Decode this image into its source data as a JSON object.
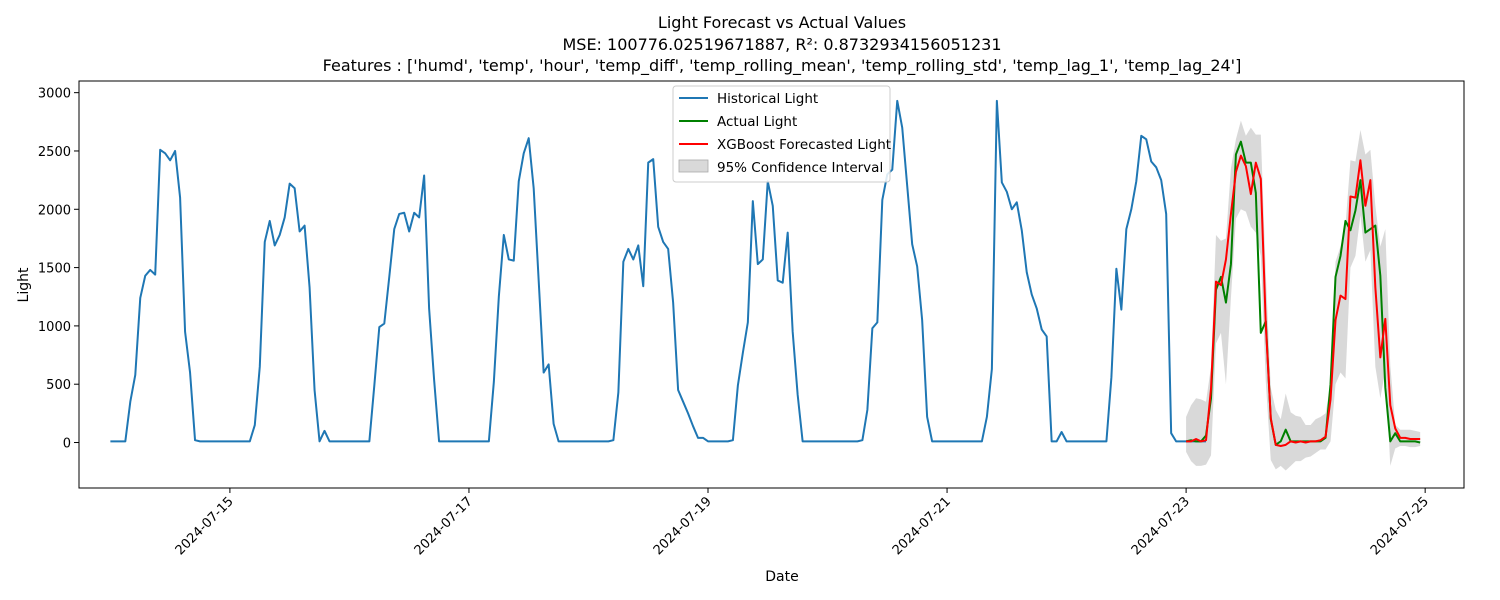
{
  "chart_data": {
    "type": "line",
    "title": "Light Forecast vs Actual Values",
    "subtitle": "MSE: 100776.02519671887, R²: 0.8732934156051231",
    "features_line": "Features : ['humd', 'temp', 'hour', 'temp_diff', 'temp_rolling_mean', 'temp_rolling_std', 'temp_lag_1', 'temp_lag_24']",
    "xlabel": "Date",
    "ylabel": "Light",
    "x_unit": "hours since 2024-07-14 00:00",
    "xlim": [
      -6.3,
      271.8
    ],
    "ylim": [
      -390,
      3100
    ],
    "x_ticks": [
      {
        "x": 24,
        "label": "2024-07-15"
      },
      {
        "x": 72,
        "label": "2024-07-17"
      },
      {
        "x": 120,
        "label": "2024-07-19"
      },
      {
        "x": 168,
        "label": "2024-07-21"
      },
      {
        "x": 216,
        "label": "2024-07-23"
      },
      {
        "x": 264,
        "label": "2024-07-25"
      }
    ],
    "y_ticks": [
      0,
      500,
      1000,
      1500,
      2000,
      2500,
      3000
    ],
    "legend_position": "upper-center",
    "series": [
      {
        "name": "Historical Light",
        "color": "#1f77b4",
        "x_start": 0,
        "values": [
          10,
          10,
          10,
          10,
          350,
          580,
          1240,
          1430,
          1480,
          1440,
          2510,
          2480,
          2420,
          2500,
          2100,
          950,
          600,
          20,
          10,
          10,
          10,
          10,
          10,
          10,
          10,
          10,
          10,
          10,
          10,
          150,
          650,
          1720,
          1900,
          1690,
          1780,
          1930,
          2220,
          2180,
          1810,
          1860,
          1330,
          450,
          10,
          100,
          10,
          10,
          10,
          10,
          10,
          10,
          10,
          10,
          10,
          490,
          990,
          1020,
          1420,
          1830,
          1960,
          1970,
          1810,
          1970,
          1930,
          2290,
          1150,
          540,
          10,
          10,
          10,
          10,
          10,
          10,
          10,
          10,
          10,
          10,
          10,
          520,
          1250,
          1780,
          1570,
          1560,
          2240,
          2480,
          2610,
          2180,
          1390,
          600,
          670,
          160,
          10,
          10,
          10,
          10,
          10,
          10,
          10,
          10,
          10,
          10,
          10,
          20,
          430,
          1550,
          1660,
          1570,
          1690,
          1340,
          2400,
          2430,
          1850,
          1720,
          1660,
          1200,
          450,
          350,
          250,
          140,
          40,
          40,
          10,
          10,
          10,
          10,
          10,
          20,
          490,
          770,
          1030,
          2070,
          1530,
          1570,
          2240,
          2030,
          1390,
          1370,
          1800,
          950,
          410,
          10,
          10,
          10,
          10,
          10,
          10,
          10,
          10,
          10,
          10,
          10,
          10,
          20,
          280,
          980,
          1030,
          2080,
          2300,
          2340,
          2930,
          2700,
          2200,
          1700,
          1510,
          1050,
          220,
          10,
          10,
          10,
          10,
          10,
          10,
          10,
          10,
          10,
          10,
          10,
          220,
          630,
          2930,
          2230,
          2150,
          2000,
          2060,
          1820,
          1460,
          1270,
          1150,
          970,
          910,
          10,
          10,
          90,
          10,
          10,
          10,
          10,
          10,
          10,
          10,
          10,
          10,
          560,
          1490,
          1140,
          1830,
          2000,
          2240,
          2630,
          2600,
          2410,
          2360,
          2250,
          1960,
          80,
          10,
          10,
          10,
          10,
          10,
          10,
          10
        ]
      },
      {
        "name": "Actual Light",
        "color": "#008000",
        "x_start": 216,
        "values": [
          10,
          20,
          10,
          10,
          60,
          380,
          1310,
          1420,
          1200,
          1530,
          2470,
          2580,
          2400,
          2400,
          2140,
          940,
          1040,
          200,
          -20,
          10,
          110,
          10,
          10,
          10,
          10,
          10,
          10,
          10,
          40,
          500,
          1420,
          1600,
          1900,
          1820,
          1990,
          2250,
          1800,
          1830,
          1860,
          1430,
          470,
          10,
          80,
          10,
          10,
          10,
          10,
          0
        ]
      },
      {
        "name": "XGBoost Forecasted Light",
        "color": "#ff0000",
        "x_start": 216,
        "values": [
          10,
          10,
          30,
          10,
          20,
          460,
          1380,
          1350,
          1570,
          1960,
          2320,
          2460,
          2370,
          2130,
          2400,
          2260,
          1010,
          210,
          -20,
          -30,
          -20,
          10,
          0,
          10,
          0,
          10,
          10,
          20,
          50,
          370,
          1050,
          1260,
          1230,
          2110,
          2100,
          2420,
          2030,
          2250,
          1330,
          730,
          1060,
          320,
          120,
          40,
          40,
          30,
          30,
          30
        ]
      }
    ],
    "confidence_interval": {
      "name": "95% Confidence Interval",
      "color": "#bfbfbf",
      "x_start": 216,
      "lower": [
        -80,
        -160,
        -200,
        -200,
        -190,
        -110,
        850,
        940,
        500,
        1240,
        1920,
        2000,
        1980,
        1850,
        1800,
        1600,
        520,
        -150,
        -230,
        -200,
        -240,
        -200,
        -160,
        -160,
        -130,
        -120,
        -90,
        -60,
        -60,
        10,
        500,
        600,
        550,
        1500,
        1600,
        1950,
        1550,
        1650,
        650,
        380,
        620,
        -200,
        -50,
        -30,
        -30,
        -40,
        -40,
        -30
      ],
      "upper": [
        220,
        320,
        380,
        370,
        350,
        650,
        1780,
        1730,
        1750,
        2350,
        2600,
        2760,
        2630,
        2700,
        2640,
        2640,
        1450,
        470,
        280,
        200,
        420,
        260,
        230,
        220,
        150,
        150,
        200,
        220,
        250,
        500,
        1550,
        1680,
        1860,
        2420,
        2410,
        2680,
        2470,
        2510,
        2030,
        1680,
        1830,
        660,
        150,
        110,
        110,
        110,
        100,
        90
      ]
    }
  }
}
